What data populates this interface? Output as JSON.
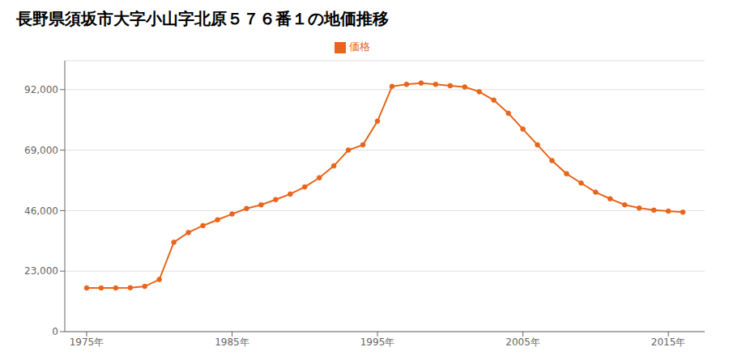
{
  "chart_data": {
    "type": "line",
    "title": "長野県須坂市大字小山字北原５７６番１の地価推移",
    "x": [
      1975,
      1976,
      1977,
      1978,
      1979,
      1980,
      1981,
      1982,
      1983,
      1984,
      1985,
      1986,
      1987,
      1988,
      1989,
      1990,
      1991,
      1992,
      1993,
      1994,
      1995,
      1996,
      1997,
      1998,
      1999,
      2000,
      2001,
      2002,
      2003,
      2004,
      2005,
      2006,
      2007,
      2008,
      2009,
      2010,
      2011,
      2012,
      2013,
      2014,
      2015,
      2016
    ],
    "series": [
      {
        "name": "価格",
        "color": "#e8651a",
        "marker": "circle",
        "values": [
          16600,
          16600,
          16600,
          16700,
          17200,
          19800,
          34000,
          37700,
          40300,
          42500,
          44700,
          46800,
          48200,
          50200,
          52300,
          55000,
          58500,
          63000,
          69000,
          71000,
          80000,
          93200,
          94000,
          94500,
          94000,
          93500,
          93000,
          91200,
          88000,
          83000,
          77000,
          71000,
          65000,
          60000,
          56500,
          53000,
          50500,
          48200,
          47000,
          46200,
          45800,
          45400
        ]
      }
    ],
    "xlim": [
      1973.5,
      2017.5
    ],
    "xticks": [
      {
        "value": 1975,
        "label": "1975年"
      },
      {
        "value": 1985,
        "label": "1985年"
      },
      {
        "value": 1995,
        "label": "1995年"
      },
      {
        "value": 2005,
        "label": "2005年"
      },
      {
        "value": 2015,
        "label": "2015年"
      }
    ],
    "ylim": [
      0,
      103000
    ],
    "yticks": [
      0,
      {
        "value": 23000,
        "label": "23,000"
      },
      {
        "value": 46000,
        "label": "46,000"
      },
      {
        "value": 69000,
        "label": "69,000"
      },
      {
        "value": 92000,
        "label": "92,000"
      }
    ],
    "grid": "y",
    "legend": "top"
  }
}
